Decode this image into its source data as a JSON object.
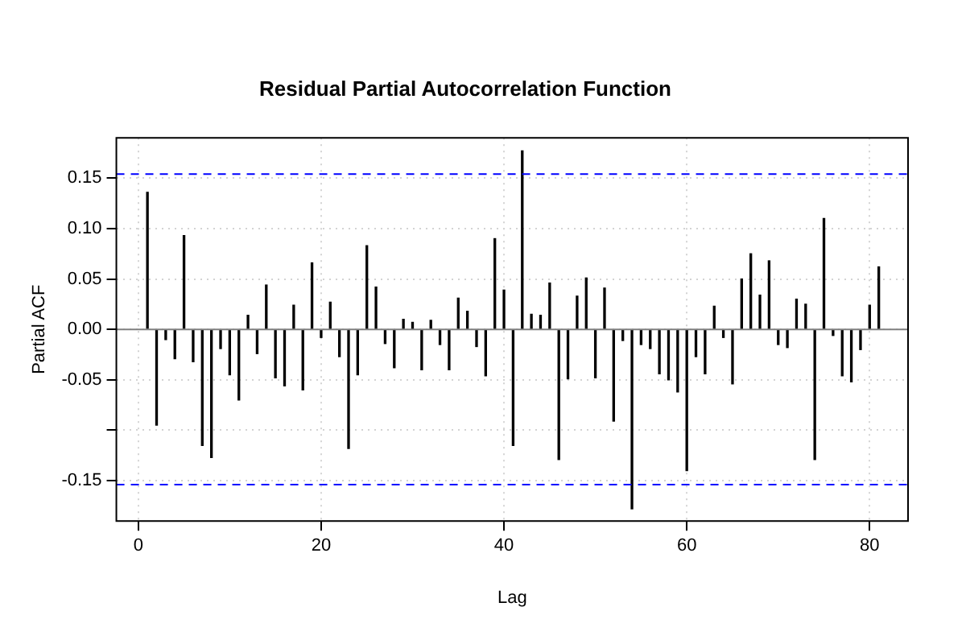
{
  "chart_data": {
    "type": "bar",
    "title": "Residual Partial Autocorrelation Function",
    "xlabel": "Lag",
    "ylabel": "Partial ACF",
    "x": [
      1,
      2,
      3,
      4,
      5,
      6,
      7,
      8,
      9,
      10,
      11,
      12,
      13,
      14,
      15,
      16,
      17,
      18,
      19,
      20,
      21,
      22,
      23,
      24,
      25,
      26,
      27,
      28,
      29,
      30,
      31,
      32,
      33,
      34,
      35,
      36,
      37,
      38,
      39,
      40,
      41,
      42,
      43,
      44,
      45,
      46,
      47,
      48,
      49,
      50,
      51,
      52,
      53,
      54,
      55,
      56,
      57,
      58,
      59,
      60,
      61,
      62,
      63,
      64,
      65,
      66,
      67,
      68,
      69,
      70,
      71,
      72,
      73,
      74,
      75,
      76,
      77,
      78,
      79,
      80,
      81
    ],
    "values": [
      0.136,
      -0.095,
      -0.01,
      -0.029,
      0.093,
      -0.032,
      -0.115,
      -0.127,
      -0.019,
      -0.045,
      -0.07,
      0.014,
      -0.024,
      0.044,
      -0.048,
      -0.056,
      0.024,
      -0.06,
      0.066,
      -0.008,
      0.027,
      -0.027,
      -0.118,
      -0.045,
      0.083,
      0.042,
      -0.014,
      -0.038,
      0.01,
      0.007,
      -0.04,
      0.009,
      -0.015,
      -0.04,
      0.031,
      0.018,
      -0.017,
      -0.046,
      0.09,
      0.039,
      -0.115,
      0.177,
      0.015,
      0.014,
      0.046,
      -0.129,
      -0.049,
      0.033,
      0.051,
      -0.048,
      0.041,
      -0.091,
      -0.011,
      -0.178,
      -0.015,
      -0.019,
      -0.044,
      -0.05,
      -0.062,
      -0.14,
      -0.027,
      -0.044,
      0.023,
      -0.008,
      -0.054,
      0.05,
      0.075,
      0.034,
      0.068,
      -0.015,
      -0.018,
      0.03,
      0.025,
      -0.129,
      0.11,
      -0.006,
      -0.046,
      -0.052,
      -0.02,
      0.024,
      0.062
    ],
    "color": "#000000",
    "xlim": [
      -2.4,
      84.2
    ],
    "xticks": [
      0,
      20,
      40,
      60,
      80
    ],
    "ylim": [
      -0.19,
      0.19
    ],
    "yticks": [
      {
        "value": -0.15,
        "label": "-0.15"
      },
      {
        "value": -0.1,
        "label": null
      },
      {
        "value": -0.05,
        "label": "-0.05"
      },
      {
        "value": 0,
        "label": "0.00"
      },
      {
        "value": 0.05,
        "label": "0.05"
      },
      {
        "value": 0.1,
        "label": "0.10"
      },
      {
        "value": 0.15,
        "label": "0.15"
      }
    ],
    "grid": true,
    "ref_lines": [
      {
        "axis": "y",
        "value": 0.154,
        "color": "#0000ff",
        "line_style": "dashed"
      },
      {
        "axis": "y",
        "value": -0.154,
        "color": "#0000ff",
        "line_style": "dashed"
      },
      {
        "axis": "y",
        "value": 0,
        "color": "#808080",
        "line_style": "solid"
      }
    ]
  }
}
